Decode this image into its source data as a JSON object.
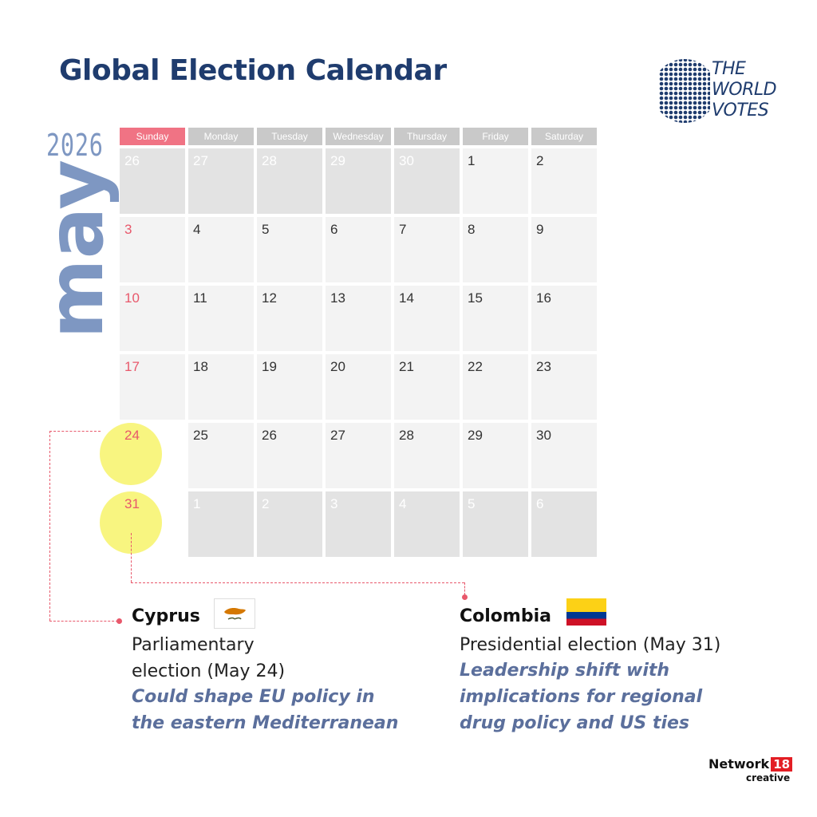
{
  "title": "Global Election Calendar",
  "logo": {
    "lines": [
      "THE",
      "WORLD",
      "VOTES"
    ]
  },
  "year": "2026",
  "month": "may",
  "weekdays": [
    "Sunday",
    "Monday",
    "Tuesday",
    "Wednesday",
    "Thursday",
    "Friday",
    "Saturday"
  ],
  "weeks": [
    [
      {
        "d": "26",
        "out": true
      },
      {
        "d": "27",
        "out": true
      },
      {
        "d": "28",
        "out": true
      },
      {
        "d": "29",
        "out": true
      },
      {
        "d": "30",
        "out": true
      },
      {
        "d": "1",
        "out": false
      },
      {
        "d": "2",
        "out": false
      }
    ],
    [
      {
        "d": "3",
        "out": false
      },
      {
        "d": "4",
        "out": false
      },
      {
        "d": "5",
        "out": false
      },
      {
        "d": "6",
        "out": false
      },
      {
        "d": "7",
        "out": false
      },
      {
        "d": "8",
        "out": false
      },
      {
        "d": "9",
        "out": false
      }
    ],
    [
      {
        "d": "10",
        "out": false
      },
      {
        "d": "11",
        "out": false
      },
      {
        "d": "12",
        "out": false
      },
      {
        "d": "13",
        "out": false
      },
      {
        "d": "14",
        "out": false
      },
      {
        "d": "15",
        "out": false
      },
      {
        "d": "16",
        "out": false
      }
    ],
    [
      {
        "d": "17",
        "out": false
      },
      {
        "d": "18",
        "out": false
      },
      {
        "d": "19",
        "out": false
      },
      {
        "d": "20",
        "out": false
      },
      {
        "d": "21",
        "out": false
      },
      {
        "d": "22",
        "out": false
      },
      {
        "d": "23",
        "out": false
      }
    ],
    [
      {
        "d": "24",
        "out": false,
        "hl": true
      },
      {
        "d": "25",
        "out": false
      },
      {
        "d": "26",
        "out": false
      },
      {
        "d": "27",
        "out": false
      },
      {
        "d": "28",
        "out": false
      },
      {
        "d": "29",
        "out": false
      },
      {
        "d": "30",
        "out": false
      }
    ],
    [
      {
        "d": "31",
        "out": false,
        "hl": true
      },
      {
        "d": "1",
        "out": true
      },
      {
        "d": "2",
        "out": true
      },
      {
        "d": "3",
        "out": true
      },
      {
        "d": "4",
        "out": true
      },
      {
        "d": "5",
        "out": true
      },
      {
        "d": "6",
        "out": true
      }
    ]
  ],
  "elections": [
    {
      "country": "Cyprus",
      "type_lines": [
        "Parliamentary",
        "election (May 24)"
      ],
      "note_lines": [
        "Could shape EU policy in",
        "the eastern Mediterranean"
      ]
    },
    {
      "country": "Colombia",
      "type_lines": [
        "Presidential election (May 31)"
      ],
      "note_lines": [
        "Leadership shift with",
        "implications for regional",
        "drug policy and US ties"
      ]
    }
  ],
  "colors": {
    "title": "#1f3c6e",
    "month": "#7e97c2",
    "sunday": "#e8586b",
    "highlight": "#f7f36a",
    "note": "#5b6f9c"
  },
  "footer": {
    "brand": "Network",
    "badge": "18",
    "sub": "creative"
  }
}
